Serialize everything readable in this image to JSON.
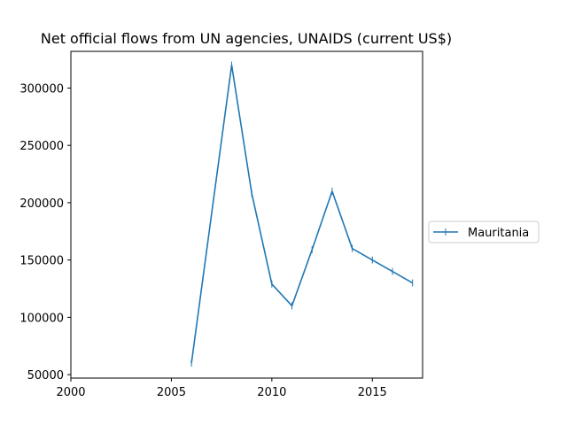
{
  "chart_data": {
    "type": "line",
    "title": "Net official flows from UN agencies, UNAIDS (current US$)",
    "xlabel": "",
    "ylabel": "",
    "xlim": [
      2000,
      2017.5
    ],
    "ylim": [
      47000,
      332000
    ],
    "x_ticks": [
      2000,
      2005,
      2010,
      2015
    ],
    "y_ticks": [
      50000,
      100000,
      150000,
      200000,
      250000,
      300000
    ],
    "grid": false,
    "legend_position": "right",
    "series": [
      {
        "name": "Mauritania",
        "color": "#1f77b4",
        "marker": "vertical-line",
        "x": [
          2006,
          2008,
          2009,
          2010,
          2011,
          2012,
          2013,
          2014,
          2015,
          2016,
          2017
        ],
        "y": [
          60000,
          320000,
          208000,
          129000,
          110000,
          159000,
          210000,
          160000,
          150000,
          140000,
          130000
        ]
      }
    ]
  }
}
